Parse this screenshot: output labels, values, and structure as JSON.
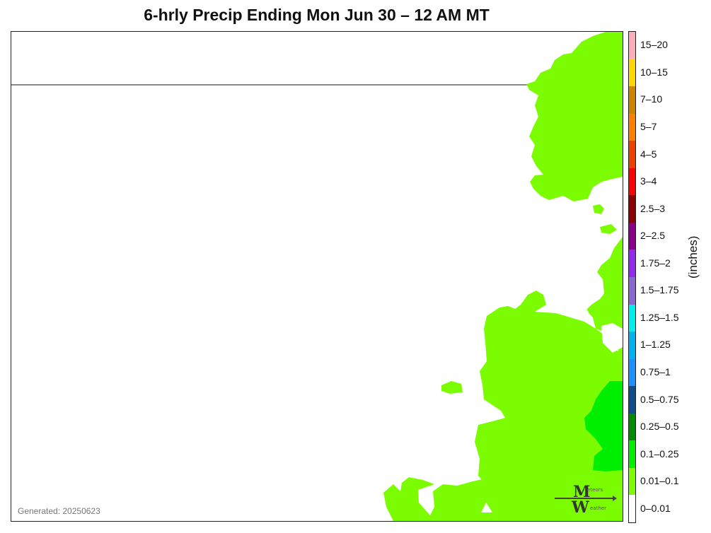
{
  "title": "6-hrly Precip Ending Mon Jun 30 – 12 AM MT",
  "generated": "Generated: 20250623",
  "units_label": "(inches)",
  "logo": {
    "text_top": "eteors",
    "text_bottom": "eather",
    "icon": "meteors-weather-logo"
  },
  "legend": [
    {
      "label": "0–0.01",
      "color": "#ffffff"
    },
    {
      "label": "0.01–0.1",
      "color": "#7cfc00"
    },
    {
      "label": "0.1–0.25",
      "color": "#00ee00"
    },
    {
      "label": "0.25–0.5",
      "color": "#008b00"
    },
    {
      "label": "0.5–0.75",
      "color": "#104e8b"
    },
    {
      "label": "0.75–1",
      "color": "#1e90ff"
    },
    {
      "label": "1–1.25",
      "color": "#00b2ee"
    },
    {
      "label": "1.25–1.5",
      "color": "#00eeee"
    },
    {
      "label": "1.5–1.75",
      "color": "#8968cd"
    },
    {
      "label": "1.75–2",
      "color": "#912cee"
    },
    {
      "label": "2–2.5",
      "color": "#8b008b"
    },
    {
      "label": "2.5–3",
      "color": "#8b0000"
    },
    {
      "label": "3–4",
      "color": "#ff0000"
    },
    {
      "label": "4–5",
      "color": "#ee4000"
    },
    {
      "label": "5–7",
      "color": "#ff7f00"
    },
    {
      "label": "7–10",
      "color": "#cd8500"
    },
    {
      "label": "10–15",
      "color": "#ffd700"
    },
    {
      "label": "15–20",
      "color": "#ffaeb9"
    }
  ]
}
